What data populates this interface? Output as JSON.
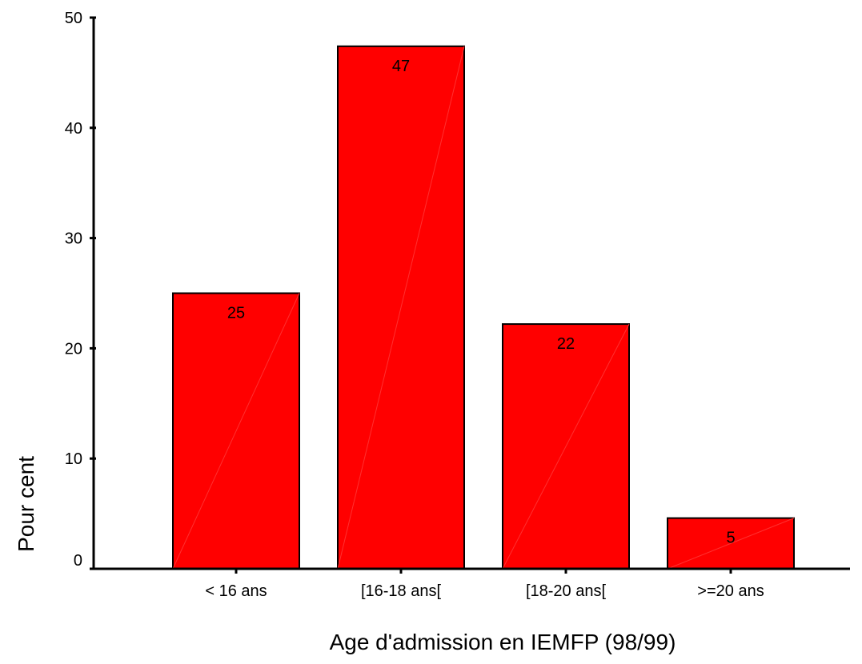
{
  "chart_data": {
    "type": "bar",
    "title": "",
    "xlabel": "Age d'admission en IEMFP (98/99)",
    "ylabel": "Pour cent",
    "categories": [
      "< 16 ans",
      "[16-18 ans[",
      "[18-20 ans[",
      ">=20 ans"
    ],
    "values": [
      25.0,
      47.4,
      22.2,
      4.6
    ],
    "data_labels": [
      "25",
      "47",
      "22",
      "5"
    ],
    "yticks": [
      0,
      10,
      20,
      30,
      40,
      50
    ],
    "ylim": [
      0,
      50
    ],
    "grid": false,
    "bar_color": "#ff0000",
    "edge_color": "#000000"
  }
}
